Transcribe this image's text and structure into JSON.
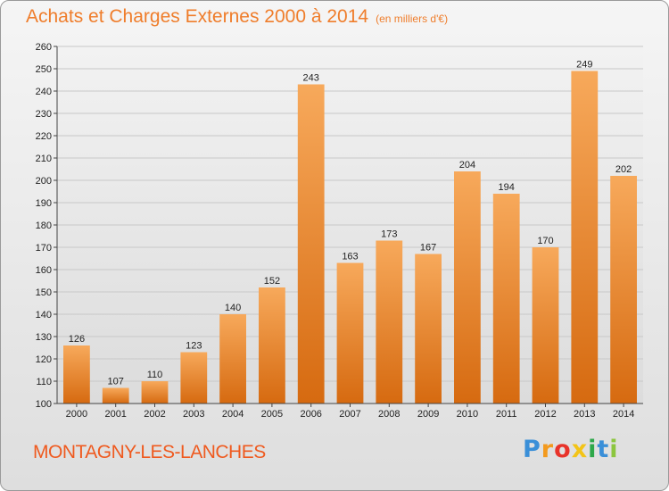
{
  "chart_data": {
    "type": "bar",
    "title": "Achats et Charges Externes 2000 à 2014",
    "subtitle": "(en milliers d'€)",
    "categories": [
      "2000",
      "2001",
      "2002",
      "2003",
      "2004",
      "2005",
      "2006",
      "2007",
      "2008",
      "2009",
      "2010",
      "2011",
      "2012",
      "2013",
      "2014"
    ],
    "values": [
      126,
      107,
      110,
      123,
      140,
      152,
      243,
      163,
      173,
      167,
      204,
      194,
      170,
      249,
      202
    ],
    "ylim": [
      100,
      260
    ],
    "yticks": [
      100,
      110,
      120,
      130,
      140,
      150,
      160,
      170,
      180,
      190,
      200,
      210,
      220,
      230,
      240,
      250,
      260
    ],
    "grid": true,
    "bar_color": "#f08a2c",
    "bar_color_top": "#f7a95b",
    "bar_color_bottom": "#d66a10"
  },
  "footer": {
    "commune": "MONTAGNY-LES-LANCHES"
  },
  "logo": {
    "text": "Proxiti",
    "letters": [
      "P",
      "r",
      "o",
      "x",
      "i",
      "t",
      "i"
    ],
    "colors": [
      "#3a8fd8",
      "#f39a1e",
      "#e8332a",
      "#f3c417",
      "#2ea84a",
      "#3a8fd8",
      "#8cc63f"
    ]
  }
}
